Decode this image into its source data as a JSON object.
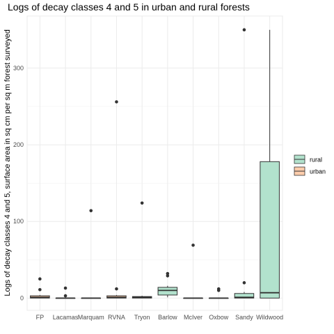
{
  "chart_data": {
    "type": "boxplot",
    "title": "Logs of decay classes 4 and 5 in urban and rural forests",
    "xlabel": "",
    "ylabel": "Logs of decay classes 4 and 5, surface area in sq cm per sq m forest surveyed",
    "ylim": [
      -16,
      368
    ],
    "yticks": [
      0,
      100,
      200,
      300
    ],
    "grid": true,
    "legend_position": "right",
    "legend_entries": [
      {
        "label": "rural",
        "color": "#b2e2cd"
      },
      {
        "label": "urban",
        "color": "#fdcdac"
      }
    ],
    "categories": [
      "FP",
      "Lacamas",
      "Marquam",
      "RVNA",
      "Tryon",
      "Barlow",
      "McIver",
      "Oxbow",
      "Sandy",
      "Wildwood"
    ],
    "boxes": [
      {
        "category": "FP",
        "group": "urban",
        "min": 0,
        "q1": 0,
        "median": 1,
        "q3": 3,
        "max": 4,
        "outliers": [
          25,
          11
        ]
      },
      {
        "category": "Lacamas",
        "group": "urban",
        "min": 0,
        "q1": 0,
        "median": 0,
        "q3": 0,
        "max": 0,
        "outliers": [
          13,
          3
        ]
      },
      {
        "category": "Marquam",
        "group": "urban",
        "min": 0,
        "q1": 0,
        "median": 0,
        "q3": 0,
        "max": 0,
        "outliers": [
          114
        ]
      },
      {
        "category": "RVNA",
        "group": "urban",
        "min": 0,
        "q1": 0,
        "median": 1,
        "q3": 3,
        "max": 4,
        "outliers": [
          256,
          12
        ]
      },
      {
        "category": "Tryon",
        "group": "urban",
        "min": 0,
        "q1": 0,
        "median": 1,
        "q3": 2,
        "max": 3,
        "outliers": [
          124
        ]
      },
      {
        "category": "Barlow",
        "group": "rural",
        "min": 1,
        "q1": 4,
        "median": 10,
        "q3": 14,
        "max": 16,
        "outliers": [
          32,
          29
        ]
      },
      {
        "category": "McIver",
        "group": "rural",
        "min": 0,
        "q1": 0,
        "median": 0,
        "q3": 0,
        "max": 0,
        "outliers": [
          69
        ]
      },
      {
        "category": "Oxbow",
        "group": "rural",
        "min": 0,
        "q1": 0,
        "median": 0,
        "q3": 0,
        "max": 0,
        "outliers": [
          12,
          10
        ]
      },
      {
        "category": "Sandy",
        "group": "rural",
        "min": 0,
        "q1": 0,
        "median": 1,
        "q3": 6,
        "max": 8,
        "outliers": [
          350,
          20
        ]
      },
      {
        "category": "Wildwood",
        "group": "rural",
        "min": 0,
        "q1": 0,
        "median": 7,
        "q3": 178,
        "max": 350,
        "outliers": []
      }
    ]
  }
}
